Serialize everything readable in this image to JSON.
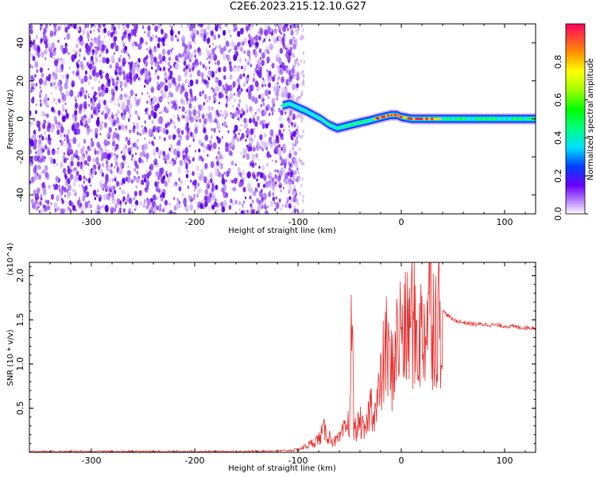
{
  "title": "C2E6.2023.215.12.10.G27",
  "chart_data": [
    {
      "type": "heatmap",
      "xlabel": "Height of straight line (km)",
      "ylabel": "Frequency (Hz)",
      "xlim": [
        -360,
        130
      ],
      "ylim": [
        -50,
        50
      ],
      "x_ticks": [
        -300,
        -200,
        -100,
        0,
        100
      ],
      "y_ticks": [
        -40,
        -20,
        0,
        20,
        40
      ],
      "noise_region_x": [
        -360,
        -100
      ],
      "signal_track": {
        "x": [
          -115,
          -108,
          -100,
          -92,
          -85,
          -78,
          -70,
          -62,
          -55,
          -48,
          -40,
          -32,
          -25,
          -18,
          -10,
          -4,
          0,
          10,
          20,
          30,
          40,
          60,
          80,
          100,
          120,
          130
        ],
        "frequency": [
          7,
          8,
          6,
          4,
          2,
          0,
          -3,
          -5,
          -4,
          -3,
          -2,
          -1,
          0,
          1,
          2,
          2,
          1,
          0,
          0,
          0,
          0,
          0,
          0,
          0,
          0,
          0
        ]
      },
      "colorbar": {
        "label": "Normalized spectral amplitude",
        "range": [
          0,
          1
        ],
        "ticks": [
          0.0,
          0.2,
          0.4,
          0.6,
          0.8
        ]
      }
    },
    {
      "type": "line",
      "xlabel": "Height of straight line (km)",
      "ylabel": "SNR (10 * v/v)",
      "y_multiplier": "(x10^4)",
      "xlim": [
        -360,
        130
      ],
      "ylim": [
        0,
        2.15
      ],
      "x_ticks": [
        -300,
        -200,
        -100,
        0,
        100
      ],
      "y_ticks": [
        0.5,
        1.0,
        1.5,
        2.0
      ],
      "y_tick_labels": [
        "0.5",
        "1.0",
        "1.5",
        "2.0"
      ],
      "series": [
        {
          "color": "#e8302e",
          "x": [
            -360,
            -300,
            -200,
            -150,
            -110,
            -100,
            -90,
            -80,
            -75,
            -70,
            -65,
            -60,
            -55,
            -50,
            -48,
            -46,
            -44,
            -40,
            -35,
            -30,
            -25,
            -20,
            -15,
            -10,
            -5,
            0,
            5,
            10,
            15,
            20,
            25,
            28,
            30,
            35,
            40,
            45,
            50,
            60,
            70,
            80,
            90,
            100,
            110,
            120,
            130
          ],
          "y": [
            0.01,
            0.01,
            0.01,
            0.01,
            0.02,
            0.03,
            0.08,
            0.15,
            0.25,
            0.18,
            0.12,
            0.15,
            0.25,
            0.35,
            1.55,
            0.3,
            0.25,
            0.35,
            0.2,
            0.55,
            0.45,
            0.75,
            1.2,
            0.9,
            1.2,
            1.4,
            1.3,
            1.55,
            1.3,
            1.35,
            1.5,
            2.1,
            1.55,
            1.5,
            1.6,
            1.55,
            1.5,
            1.47,
            1.45,
            1.45,
            1.44,
            1.43,
            1.42,
            1.41,
            1.41
          ]
        }
      ]
    }
  ]
}
